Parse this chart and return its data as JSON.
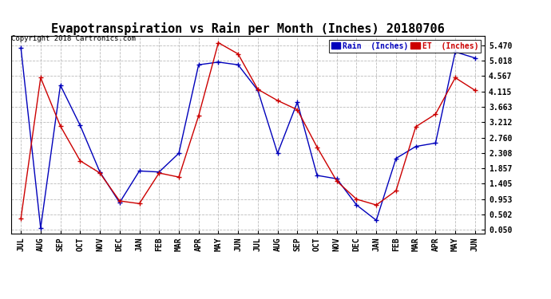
{
  "title": "Evapotranspiration vs Rain per Month (Inches) 20180706",
  "copyright": "Copyright 2018 Cartronics.com",
  "x_labels": [
    "JUL",
    "AUG",
    "SEP",
    "OCT",
    "NOV",
    "DEC",
    "JAN",
    "FEB",
    "MAR",
    "APR",
    "MAY",
    "JUN",
    "JUL",
    "AUG",
    "SEP",
    "OCT",
    "NOV",
    "DEC",
    "JAN",
    "FEB",
    "MAR",
    "APR",
    "MAY",
    "JUN"
  ],
  "rain_data": [
    5.4,
    0.1,
    4.3,
    3.12,
    1.75,
    0.85,
    1.78,
    1.75,
    2.3,
    4.9,
    4.98,
    4.9,
    4.15,
    2.3,
    3.8,
    1.65,
    1.55,
    0.78,
    0.33,
    2.15,
    2.5,
    2.6,
    5.28,
    5.1
  ],
  "et_data": [
    0.38,
    4.52,
    3.1,
    2.08,
    1.72,
    0.9,
    0.82,
    1.72,
    1.6,
    3.4,
    5.55,
    5.22,
    4.18,
    3.85,
    3.58,
    2.48,
    1.48,
    0.95,
    0.78,
    1.2,
    3.08,
    3.45,
    4.52,
    4.15
  ],
  "rain_color": "#0000BB",
  "et_color": "#CC0000",
  "bg_color": "#FFFFFF",
  "grid_color": "#BBBBBB",
  "ytick_labels": [
    "0.050",
    "0.502",
    "0.953",
    "1.405",
    "1.857",
    "2.308",
    "2.760",
    "3.212",
    "3.663",
    "4.115",
    "4.567",
    "5.018",
    "5.470"
  ],
  "ytick_values": [
    0.05,
    0.502,
    0.953,
    1.405,
    1.857,
    2.308,
    2.76,
    3.212,
    3.663,
    4.115,
    4.567,
    5.018,
    5.47
  ],
  "ymin": -0.05,
  "ymax": 5.75,
  "title_fontsize": 11,
  "tick_fontsize": 7,
  "copyright_fontsize": 6.5,
  "legend_rain_label": "Rain  (Inches)",
  "legend_et_label": "ET  (Inches)"
}
